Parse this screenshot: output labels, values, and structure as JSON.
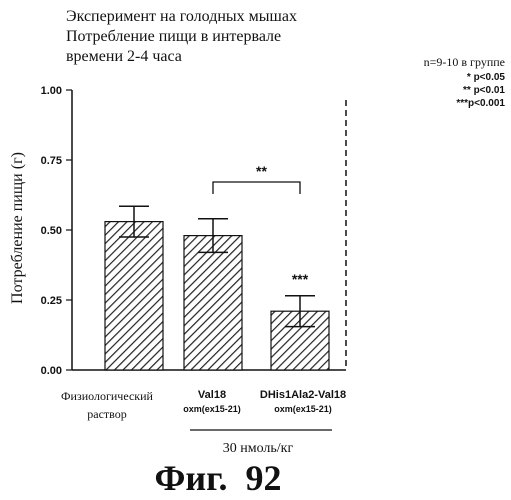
{
  "chart_data": {
    "type": "bar",
    "title_lines": [
      "Эксперимент на голодных мышах",
      "Потребление пищи в интервале",
      "времени 2-4 часа"
    ],
    "ylabel": "Потребление пищи (г)",
    "ylim": [
      0,
      1.0
    ],
    "yticks": [
      "0.00",
      "0.25",
      "0.50",
      "0.75",
      "1.00"
    ],
    "ytick_values": [
      0,
      0.25,
      0.5,
      0.75,
      1.0
    ],
    "categories": [
      {
        "label": "Физиологический",
        "label2": "раствор",
        "sub": ""
      },
      {
        "label": "Val18",
        "label2": "",
        "sub": "oxm(ex15-21)"
      },
      {
        "label": "DHis1Ala2-Val18",
        "label2": "",
        "sub": "oxm(ex15-21)"
      }
    ],
    "values": [
      0.53,
      0.48,
      0.21
    ],
    "errors": [
      0.055,
      0.06,
      0.055
    ],
    "significance": [
      {
        "between": [
          1,
          2
        ],
        "label": "**"
      },
      {
        "bar": 2,
        "label": "***"
      }
    ],
    "group_note": "30 нмоль/кг",
    "n_note": "n=9-10 в группе",
    "p_notes": [
      "* p<0.05",
      "** p<0.01",
      "***p<0.001"
    ],
    "figure_label": "Фиг.  92",
    "grid": false,
    "hatch": "diagonal"
  }
}
